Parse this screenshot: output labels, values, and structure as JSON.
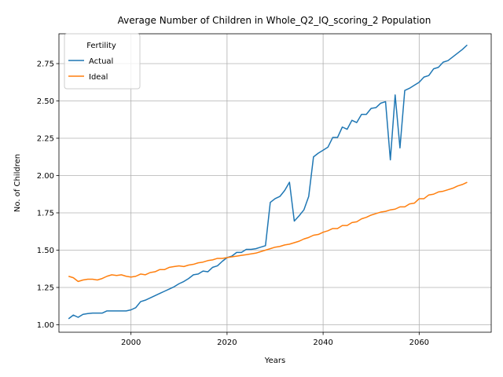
{
  "chart_data": {
    "type": "line",
    "title": "Average Number of Children in Whole_Q2_IQ_scoring_2 Population",
    "xlabel": "Years",
    "ylabel": "No. of Children",
    "xlim": [
      1985,
      2075
    ],
    "ylim": [
      0.95,
      2.95
    ],
    "x_ticks": [
      2000,
      2020,
      2040,
      2060
    ],
    "y_ticks": [
      1.0,
      1.25,
      1.5,
      1.75,
      2.0,
      2.25,
      2.5,
      2.75
    ],
    "grid": true,
    "legend": {
      "title": "Fertility",
      "placement": "top-left"
    },
    "series": [
      {
        "name": "Actual",
        "color": "#1f77b4",
        "x": [
          1987,
          1988,
          1989,
          1990,
          1991,
          1992,
          1993,
          1994,
          1995,
          1996,
          1997,
          1998,
          1999,
          2000,
          2001,
          2002,
          2003,
          2004,
          2005,
          2006,
          2007,
          2008,
          2009,
          2010,
          2011,
          2012,
          2013,
          2014,
          2015,
          2016,
          2017,
          2018,
          2019,
          2020,
          2021,
          2022,
          2023,
          2024,
          2025,
          2026,
          2027,
          2028,
          2029,
          2030,
          2031,
          2032,
          2033,
          2034,
          2035,
          2036,
          2037,
          2038,
          2039,
          2040,
          2041,
          2042,
          2043,
          2044,
          2045,
          2046,
          2047,
          2048,
          2049,
          2050,
          2051,
          2052,
          2053,
          2054,
          2055,
          2056,
          2057,
          2058,
          2059,
          2060,
          2061,
          2062,
          2063,
          2064,
          2065,
          2066,
          2067,
          2068,
          2069,
          2070
        ],
        "values": [
          1.04,
          1.065,
          1.05,
          1.07,
          1.075,
          1.078,
          1.078,
          1.078,
          1.093,
          1.093,
          1.093,
          1.093,
          1.093,
          1.1,
          1.115,
          1.155,
          1.165,
          1.18,
          1.195,
          1.21,
          1.225,
          1.24,
          1.255,
          1.275,
          1.29,
          1.31,
          1.335,
          1.34,
          1.36,
          1.355,
          1.385,
          1.395,
          1.425,
          1.45,
          1.46,
          1.485,
          1.485,
          1.505,
          1.505,
          1.51,
          1.52,
          1.53,
          1.82,
          1.845,
          1.86,
          1.9,
          1.955,
          1.695,
          1.73,
          1.77,
          1.86,
          2.125,
          2.15,
          2.17,
          2.19,
          2.255,
          2.255,
          2.325,
          2.31,
          2.37,
          2.355,
          2.41,
          2.41,
          2.45,
          2.455,
          2.485,
          2.495,
          2.105,
          2.54,
          2.185,
          2.57,
          2.585,
          2.605,
          2.625,
          2.66,
          2.67,
          2.715,
          2.725,
          2.76,
          2.77,
          2.795,
          2.82,
          2.845,
          2.875
        ]
      },
      {
        "name": "Ideal",
        "color": "#ff7f0e",
        "x": [
          1987,
          1988,
          1989,
          1990,
          1991,
          1992,
          1993,
          1994,
          1995,
          1996,
          1997,
          1998,
          1999,
          2000,
          2001,
          2002,
          2003,
          2004,
          2005,
          2006,
          2007,
          2008,
          2009,
          2010,
          2011,
          2012,
          2013,
          2014,
          2015,
          2016,
          2017,
          2018,
          2019,
          2020,
          2021,
          2022,
          2023,
          2024,
          2025,
          2026,
          2027,
          2028,
          2029,
          2030,
          2031,
          2032,
          2033,
          2034,
          2035,
          2036,
          2037,
          2038,
          2039,
          2040,
          2041,
          2042,
          2043,
          2044,
          2045,
          2046,
          2047,
          2048,
          2049,
          2050,
          2051,
          2052,
          2053,
          2054,
          2055,
          2056,
          2057,
          2058,
          2059,
          2060,
          2061,
          2062,
          2063,
          2064,
          2065,
          2066,
          2067,
          2068,
          2069,
          2070
        ],
        "values": [
          1.325,
          1.315,
          1.29,
          1.3,
          1.305,
          1.305,
          1.3,
          1.31,
          1.325,
          1.335,
          1.33,
          1.335,
          1.325,
          1.32,
          1.325,
          1.34,
          1.335,
          1.35,
          1.355,
          1.37,
          1.37,
          1.385,
          1.39,
          1.395,
          1.39,
          1.4,
          1.405,
          1.415,
          1.42,
          1.43,
          1.435,
          1.445,
          1.445,
          1.45,
          1.455,
          1.46,
          1.465,
          1.47,
          1.475,
          1.48,
          1.49,
          1.5,
          1.51,
          1.52,
          1.525,
          1.535,
          1.54,
          1.55,
          1.56,
          1.575,
          1.585,
          1.6,
          1.605,
          1.62,
          1.63,
          1.645,
          1.645,
          1.665,
          1.665,
          1.685,
          1.69,
          1.71,
          1.72,
          1.735,
          1.745,
          1.755,
          1.76,
          1.77,
          1.775,
          1.79,
          1.79,
          1.81,
          1.815,
          1.845,
          1.845,
          1.87,
          1.875,
          1.89,
          1.895,
          1.905,
          1.915,
          1.93,
          1.94,
          1.955
        ]
      }
    ]
  }
}
